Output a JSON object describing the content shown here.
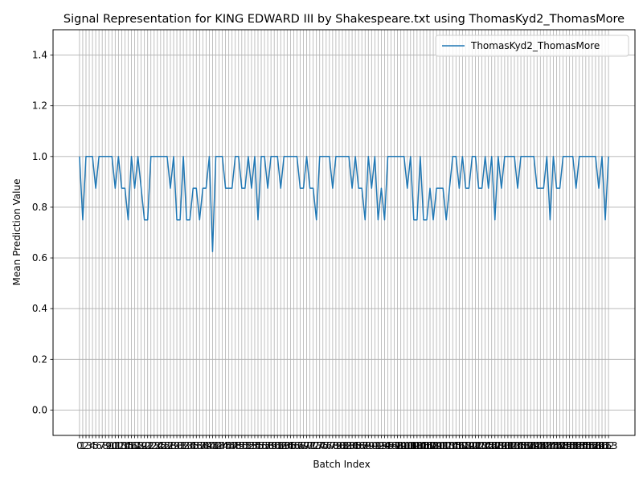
{
  "chart_data": {
    "type": "line",
    "title": "Signal Representation for KING EDWARD III by Shakespeare.txt using ThomasKyd2_ThomasMore",
    "xlabel": "Batch Index",
    "ylabel": "Mean Prediction Value",
    "ylim": [
      -0.1,
      1.5
    ],
    "yticks": [
      0.0,
      0.2,
      0.4,
      0.6,
      0.8,
      1.0,
      1.2,
      1.4
    ],
    "grid": true,
    "legend_position": "top-right",
    "series": [
      {
        "name": "ThomasKyd2_ThomasMore",
        "color": "#1f77b4",
        "x": [
          0,
          1,
          2,
          3,
          4,
          5,
          6,
          7,
          8,
          9,
          10,
          11,
          12,
          13,
          14,
          15,
          16,
          17,
          18,
          19,
          20,
          21,
          22,
          23,
          24,
          25,
          26,
          27,
          28,
          29,
          30,
          31,
          32,
          33,
          34,
          35,
          36,
          37,
          38,
          39,
          40,
          41,
          42,
          43,
          44,
          45,
          46,
          47,
          48,
          49,
          50,
          51,
          52,
          53,
          54,
          55,
          56,
          57,
          58,
          59,
          60,
          61,
          62,
          63,
          64,
          65,
          66,
          67,
          68,
          69,
          70,
          71,
          72,
          73,
          74,
          75,
          76,
          77,
          78,
          79,
          80,
          81,
          82,
          83,
          84,
          85,
          86,
          87,
          88,
          89,
          90,
          91,
          92,
          93,
          94,
          95,
          96,
          97,
          98,
          99,
          100,
          101,
          102,
          103,
          104,
          105,
          106,
          107,
          108,
          109,
          110,
          111,
          112,
          113,
          114,
          115,
          116,
          117,
          118,
          119,
          120,
          121,
          122,
          123,
          124,
          125,
          126,
          127,
          128,
          129,
          130,
          131,
          132,
          133,
          134,
          135,
          136,
          137,
          138,
          139,
          140,
          141,
          142,
          143,
          144,
          145,
          146,
          147,
          148,
          149,
          150,
          151,
          152,
          153,
          154,
          155,
          156,
          157,
          158,
          159,
          160,
          161,
          162,
          163
        ],
        "values": [
          1.0,
          0.75,
          1.0,
          1.0,
          1.0,
          0.875,
          1.0,
          1.0,
          1.0,
          1.0,
          1.0,
          0.875,
          1.0,
          0.875,
          0.875,
          0.75,
          1.0,
          0.875,
          1.0,
          0.875,
          0.75,
          0.75,
          1.0,
          1.0,
          1.0,
          1.0,
          1.0,
          1.0,
          0.875,
          1.0,
          0.75,
          0.75,
          1.0,
          0.75,
          0.75,
          0.875,
          0.875,
          0.75,
          0.875,
          0.875,
          1.0,
          0.625,
          1.0,
          1.0,
          1.0,
          0.875,
          0.875,
          0.875,
          1.0,
          1.0,
          0.875,
          0.875,
          1.0,
          0.875,
          1.0,
          0.75,
          1.0,
          1.0,
          0.875,
          1.0,
          1.0,
          1.0,
          0.875,
          1.0,
          1.0,
          1.0,
          1.0,
          1.0,
          0.875,
          0.875,
          1.0,
          0.875,
          0.875,
          0.75,
          1.0,
          1.0,
          1.0,
          1.0,
          0.875,
          1.0,
          1.0,
          1.0,
          1.0,
          1.0,
          0.875,
          1.0,
          0.875,
          0.875,
          0.75,
          1.0,
          0.875,
          1.0,
          0.75,
          0.875,
          0.75,
          1.0,
          1.0,
          1.0,
          1.0,
          1.0,
          1.0,
          0.875,
          1.0,
          0.75,
          0.75,
          1.0,
          0.75,
          0.75,
          0.875,
          0.75,
          0.875,
          0.875,
          0.875,
          0.75,
          0.875,
          1.0,
          1.0,
          0.875,
          1.0,
          0.875,
          0.875,
          1.0,
          1.0,
          0.875,
          0.875,
          1.0,
          0.875,
          1.0,
          0.75,
          1.0,
          0.875,
          1.0,
          1.0,
          1.0,
          1.0,
          0.875,
          1.0,
          1.0,
          1.0,
          1.0,
          1.0,
          0.875,
          0.875,
          0.875,
          1.0,
          0.75,
          1.0,
          0.875,
          0.875,
          1.0,
          1.0,
          1.0,
          1.0,
          0.875,
          1.0,
          1.0,
          1.0,
          1.0,
          1.0,
          1.0,
          0.875,
          1.0,
          0.75,
          1.0
        ]
      }
    ]
  }
}
